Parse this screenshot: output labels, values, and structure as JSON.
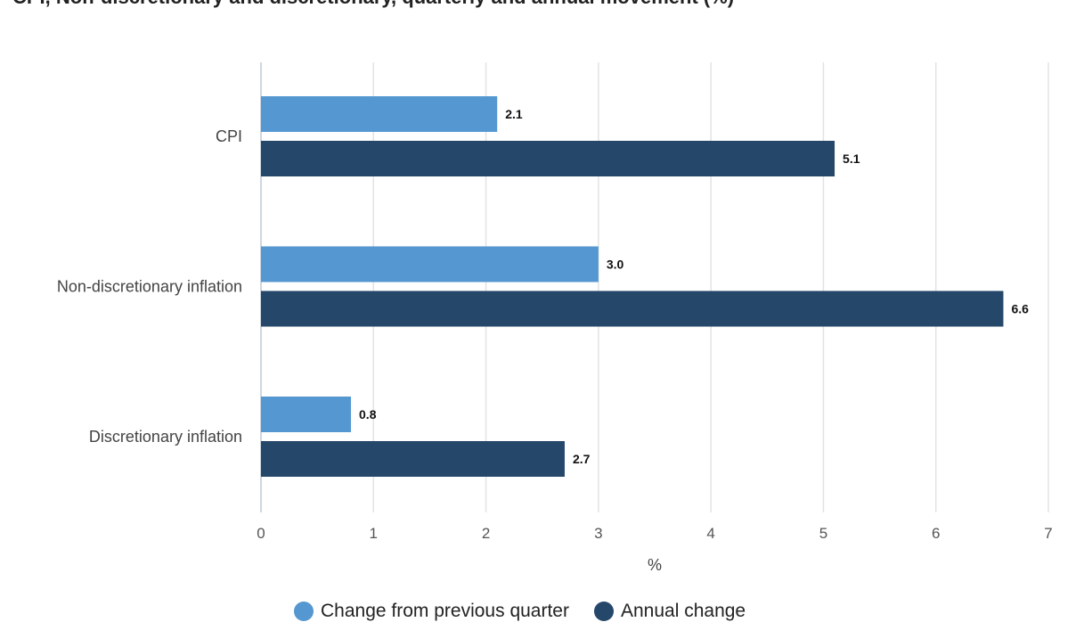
{
  "chart_data": {
    "type": "bar",
    "orientation": "horizontal",
    "title": "CPI, Non-discretionary and discretionary, quarterly and annual movement (%)",
    "categories": [
      "CPI",
      "Non-discretionary inflation",
      "Discretionary inflation"
    ],
    "series": [
      {
        "name": "Change from previous quarter",
        "values": [
          2.1,
          3.0,
          0.8
        ],
        "color": "#5497d1"
      },
      {
        "name": "Annual change",
        "values": [
          5.1,
          6.6,
          2.7
        ],
        "color": "#25476a"
      }
    ],
    "data_labels": [
      [
        "2.1",
        "3.0",
        "0.8"
      ],
      [
        "5.1",
        "6.6",
        "2.7"
      ]
    ],
    "xlabel": "%",
    "ylabel": "",
    "xlim": [
      0,
      7
    ],
    "xticks": [
      "0",
      "1",
      "2",
      "3",
      "4",
      "5",
      "6",
      "7"
    ],
    "grid": true,
    "legend_position": "bottom"
  }
}
